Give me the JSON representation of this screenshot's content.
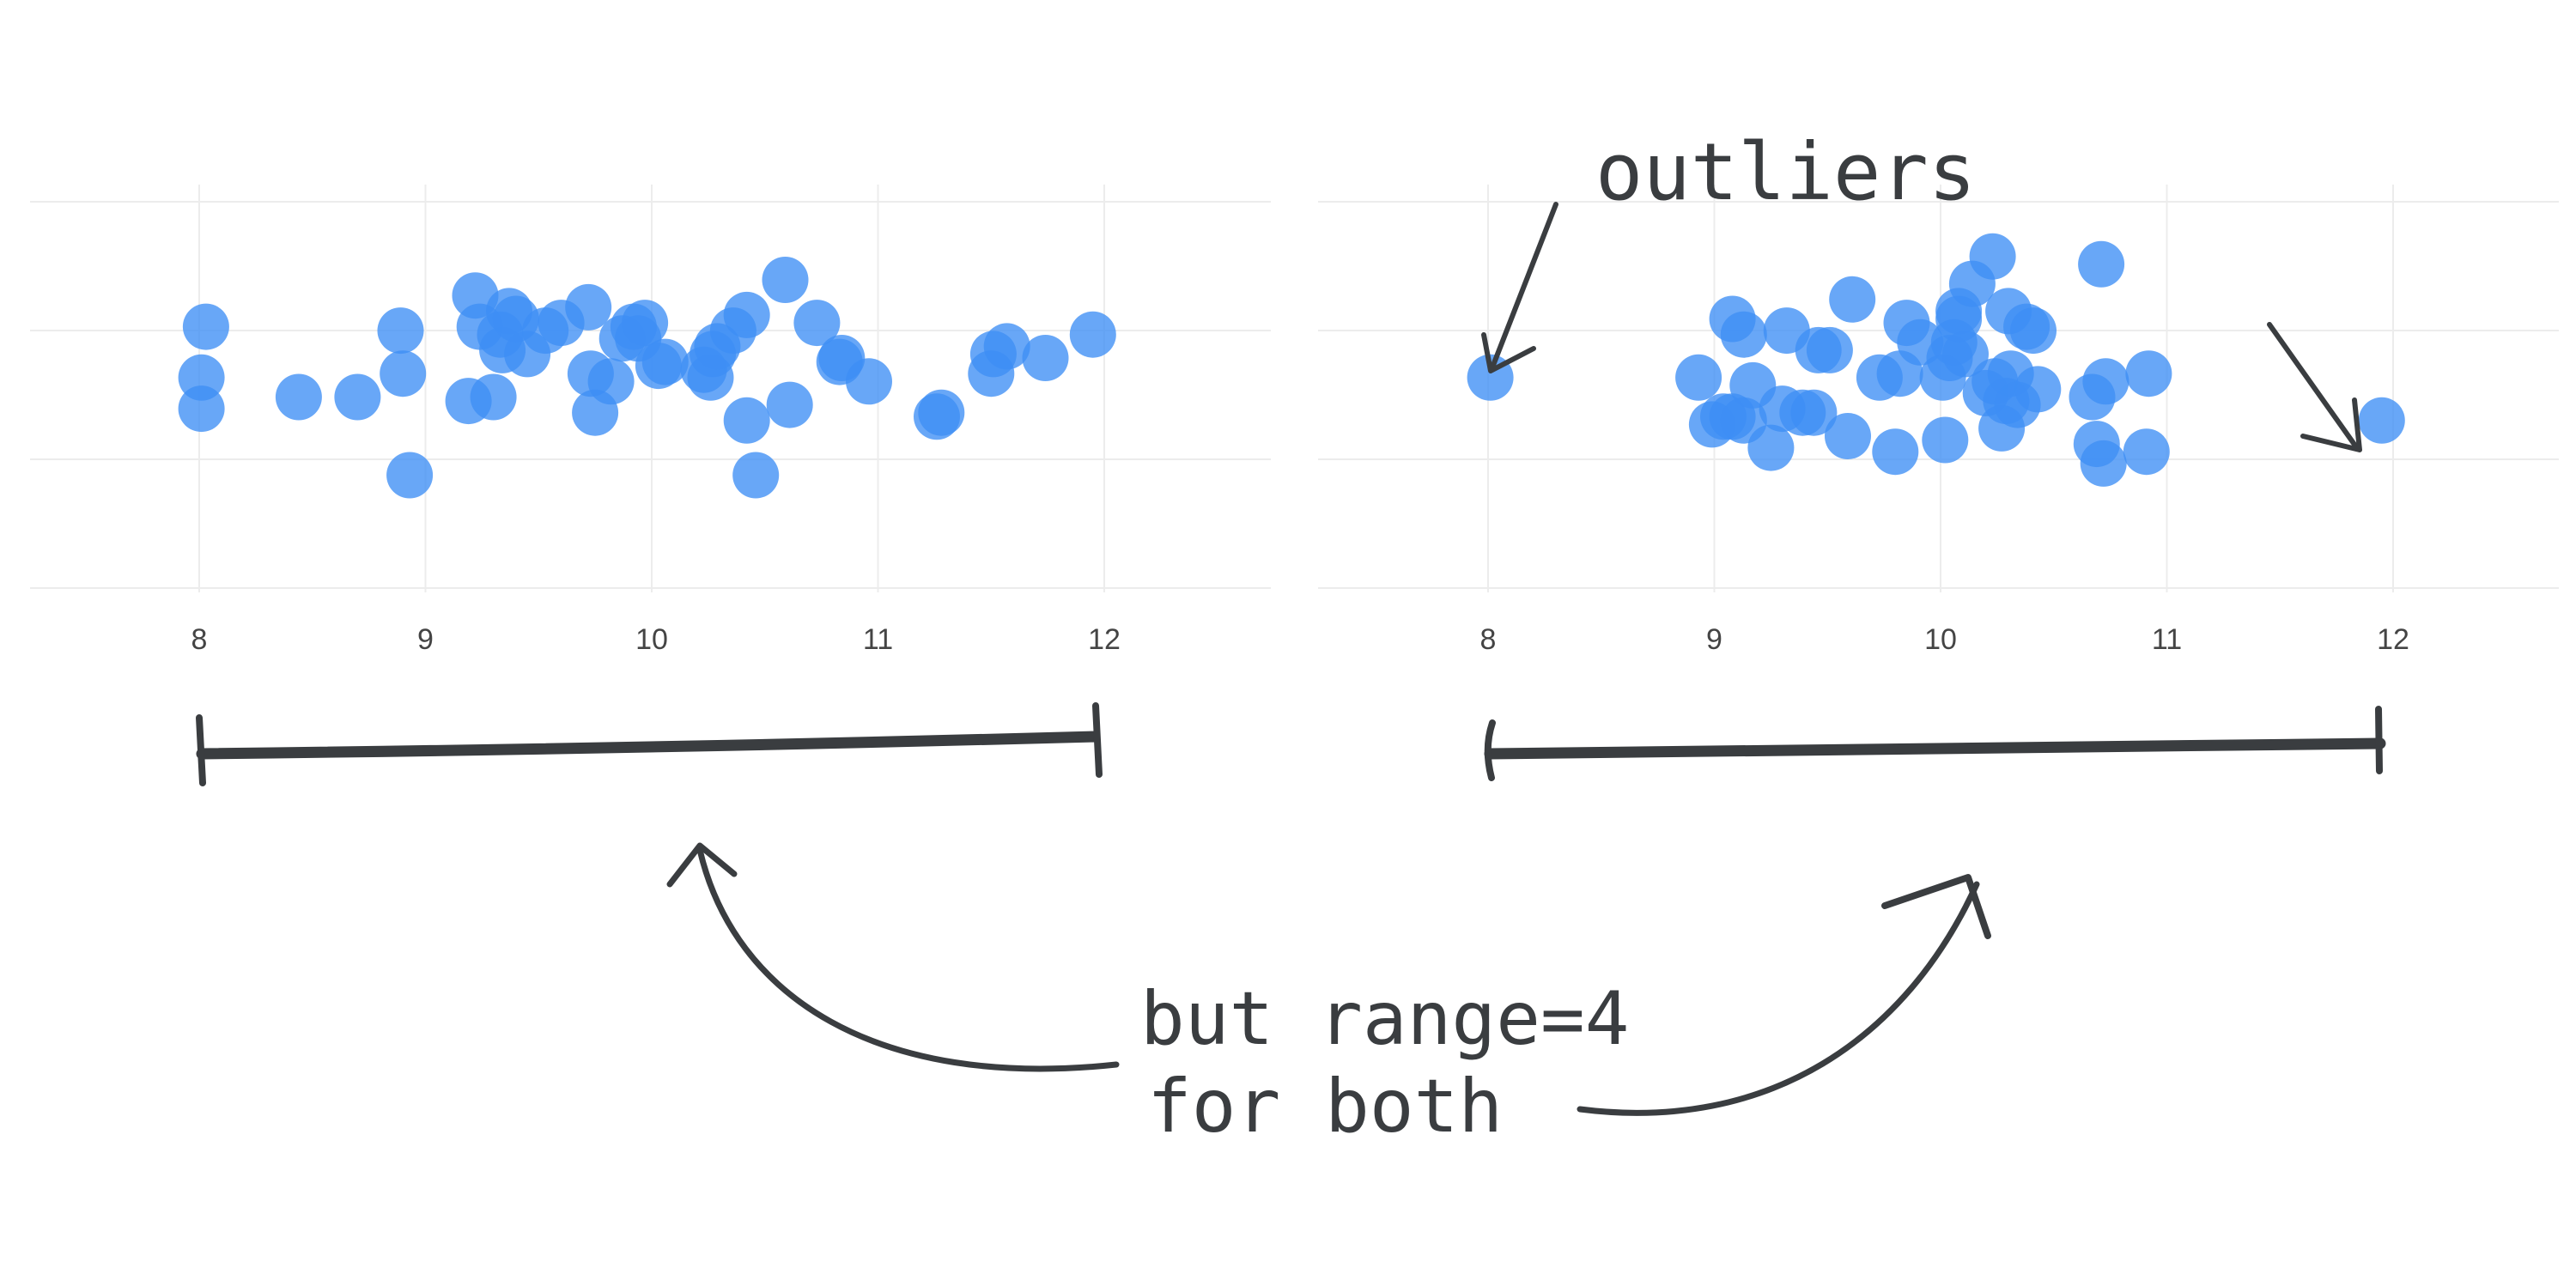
{
  "chart_data": [
    {
      "type": "scatter",
      "xlim": [
        7.3,
        12.7
      ],
      "x_ticks": [
        "8",
        "9",
        "10",
        "11",
        "12"
      ],
      "grid": true,
      "series": [
        {
          "color": "#3d8ef5",
          "points": [
            [
              8.03,
              0.68
            ],
            [
              8.01,
              0.55
            ],
            [
              8.01,
              0.47
            ],
            [
              8.44,
              0.5
            ],
            [
              8.7,
              0.5
            ],
            [
              8.89,
              0.67
            ],
            [
              8.9,
              0.56
            ],
            [
              8.93,
              0.3
            ],
            [
              9.19,
              0.49
            ],
            [
              9.22,
              0.76
            ],
            [
              9.24,
              0.68
            ],
            [
              9.3,
              0.5
            ],
            [
              9.33,
              0.66
            ],
            [
              9.34,
              0.62
            ],
            [
              9.37,
              0.72
            ],
            [
              9.4,
              0.7
            ],
            [
              9.45,
              0.61
            ],
            [
              9.53,
              0.67
            ],
            [
              9.6,
              0.69
            ],
            [
              9.72,
              0.73
            ],
            [
              9.73,
              0.56
            ],
            [
              9.75,
              0.46
            ],
            [
              9.82,
              0.54
            ],
            [
              9.87,
              0.65
            ],
            [
              9.92,
              0.68
            ],
            [
              9.94,
              0.65
            ],
            [
              9.97,
              0.69
            ],
            [
              10.03,
              0.58
            ],
            [
              10.06,
              0.59
            ],
            [
              10.23,
              0.57
            ],
            [
              10.26,
              0.55
            ],
            [
              10.27,
              0.61
            ],
            [
              10.29,
              0.63
            ],
            [
              10.36,
              0.67
            ],
            [
              10.42,
              0.71
            ],
            [
              10.42,
              0.44
            ],
            [
              10.46,
              0.3
            ],
            [
              10.59,
              0.8
            ],
            [
              10.61,
              0.48
            ],
            [
              10.73,
              0.69
            ],
            [
              10.83,
              0.59
            ],
            [
              10.84,
              0.6
            ],
            [
              10.96,
              0.54
            ],
            [
              11.26,
              0.45
            ],
            [
              11.28,
              0.46
            ],
            [
              11.5,
              0.56
            ],
            [
              11.51,
              0.61
            ],
            [
              11.57,
              0.63
            ],
            [
              11.74,
              0.6
            ],
            [
              11.95,
              0.66
            ]
          ]
        }
      ]
    },
    {
      "type": "scatter",
      "xlim": [
        7.3,
        12.7
      ],
      "x_ticks": [
        "8",
        "9",
        "10",
        "11",
        "12"
      ],
      "grid": true,
      "series": [
        {
          "color": "#3d8ef5",
          "points": [
            [
              8.01,
              0.55
            ],
            [
              8.93,
              0.55
            ],
            [
              8.99,
              0.43
            ],
            [
              9.04,
              0.45
            ],
            [
              9.08,
              0.45
            ],
            [
              9.08,
              0.7
            ],
            [
              9.13,
              0.66
            ],
            [
              9.13,
              0.44
            ],
            [
              9.17,
              0.53
            ],
            [
              9.25,
              0.37
            ],
            [
              9.3,
              0.47
            ],
            [
              9.32,
              0.67
            ],
            [
              9.39,
              0.46
            ],
            [
              9.44,
              0.46
            ],
            [
              9.46,
              0.62
            ],
            [
              9.51,
              0.62
            ],
            [
              9.59,
              0.4
            ],
            [
              9.61,
              0.75
            ],
            [
              9.73,
              0.55
            ],
            [
              9.8,
              0.36
            ],
            [
              9.82,
              0.56
            ],
            [
              9.85,
              0.69
            ],
            [
              9.91,
              0.64
            ],
            [
              10.01,
              0.55
            ],
            [
              10.02,
              0.39
            ],
            [
              10.04,
              0.6
            ],
            [
              10.06,
              0.64
            ],
            [
              10.08,
              0.7
            ],
            [
              10.08,
              0.72
            ],
            [
              10.11,
              0.61
            ],
            [
              10.14,
              0.79
            ],
            [
              10.2,
              0.51
            ],
            [
              10.23,
              0.86
            ],
            [
              10.24,
              0.54
            ],
            [
              10.27,
              0.42
            ],
            [
              10.29,
              0.49
            ],
            [
              10.3,
              0.72
            ],
            [
              10.31,
              0.56
            ],
            [
              10.34,
              0.48
            ],
            [
              10.38,
              0.68
            ],
            [
              10.41,
              0.67
            ],
            [
              10.43,
              0.52
            ],
            [
              10.67,
              0.5
            ],
            [
              10.69,
              0.38
            ],
            [
              10.71,
              0.84
            ],
            [
              10.72,
              0.33
            ],
            [
              10.73,
              0.54
            ],
            [
              10.91,
              0.36
            ],
            [
              10.92,
              0.56
            ],
            [
              11.95,
              0.44
            ]
          ]
        }
      ]
    }
  ],
  "annotations": {
    "outliers": "outliers",
    "range_line1": "but range=4",
    "range_line2": "for both"
  }
}
